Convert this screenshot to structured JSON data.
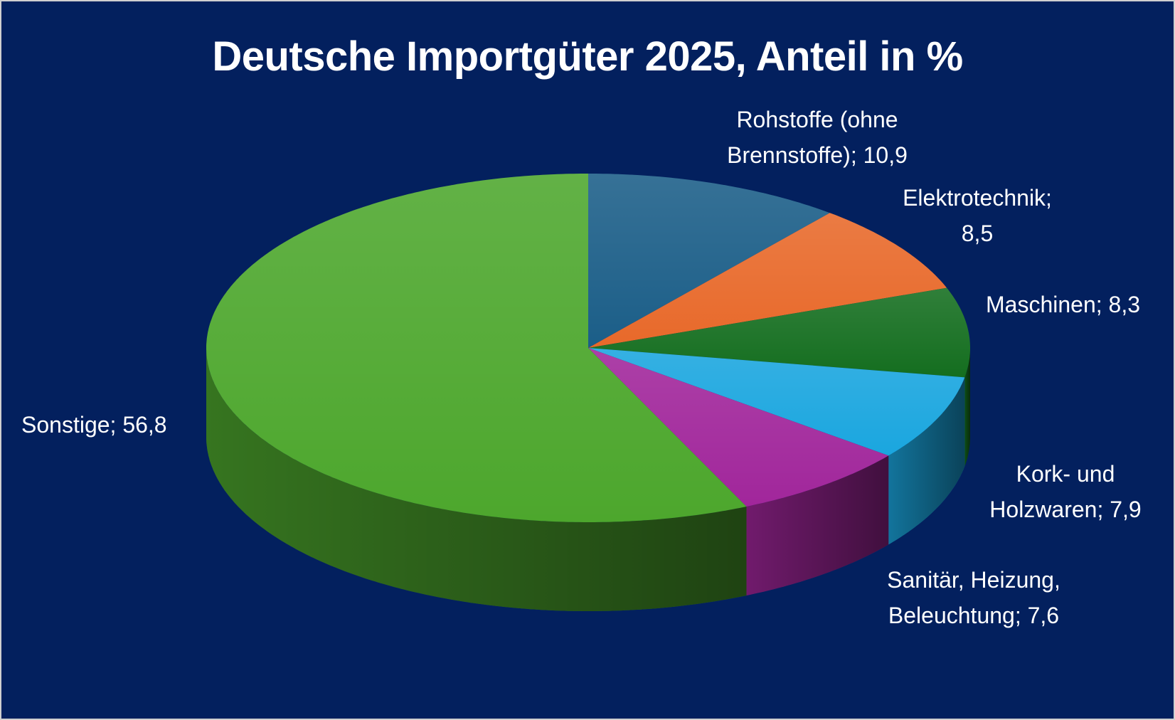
{
  "chart_data": {
    "type": "pie3d",
    "title": "Deutsche Importgüter 2025, Anteil in %",
    "values": [
      10.9,
      8.5,
      8.3,
      7.9,
      7.6,
      56.8
    ],
    "value_labels": [
      "Rohstoffe (ohne Brennstoffe); 10,9",
      "Elektrotechnik; 8,5",
      "Maschinen; 8,3",
      "Kork- und Holzwaren; 7,9",
      "Sanitär, Heizung, Beleuchtung; 7,6",
      "Sonstige; 56,8"
    ],
    "colors": [
      "#1b5e88",
      "#e8692a",
      "#146e1f",
      "#1aa6df",
      "#a1269b",
      "#4da72d"
    ]
  }
}
